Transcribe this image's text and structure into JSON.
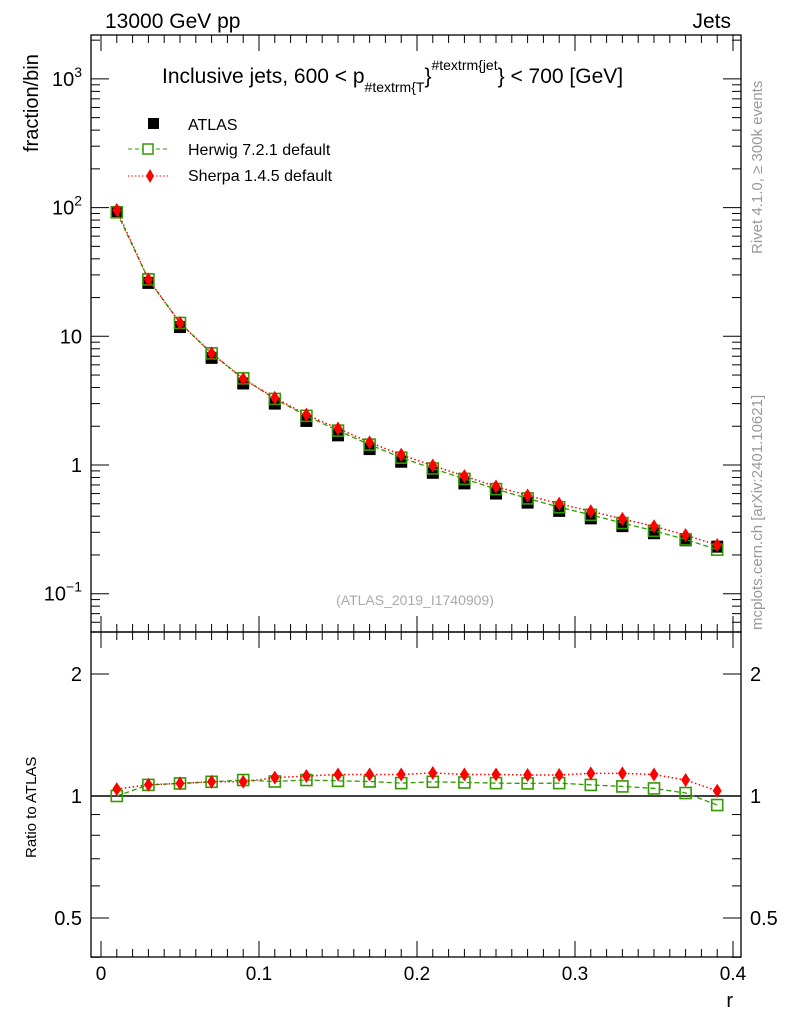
{
  "header": {
    "left": "13000 GeV pp",
    "right": "Jets"
  },
  "side_text": {
    "rivet": "Rivet 4.1.0, ≥ 300k events",
    "mcplots": "mcplots.cern.ch [arXiv:2401.10621]"
  },
  "watermark": "(ATLAS_2019_I1740909)",
  "chart_data": [
    {
      "type": "scatter",
      "title_parts": {
        "main": "Inclusive jets, 600 < p",
        "sub": "#textrm{T",
        "mid": "}",
        "sup": "#textrm{jet",
        "tail": "} < 700 [GeV]"
      },
      "xlabel": "r",
      "ylabel": "fraction/bin",
      "yscale": "log",
      "ylim": [
        0.05,
        2200
      ],
      "xlim": [
        -0.0063,
        0.4051
      ],
      "ytick_labels": [
        {
          "value": 1000,
          "base": "10",
          "exp": "3"
        },
        {
          "value": 100,
          "base": "10",
          "exp": "2"
        },
        {
          "value": 10,
          "base": "10",
          "exp": ""
        },
        {
          "value": 1,
          "base": "1",
          "exp": ""
        },
        {
          "value": 0.1,
          "base": "10",
          "exp": "−1"
        }
      ],
      "x": [
        0.01,
        0.03,
        0.05,
        0.07,
        0.09,
        0.11,
        0.13,
        0.15,
        0.17,
        0.19,
        0.21,
        0.23,
        0.25,
        0.27,
        0.29,
        0.31,
        0.33,
        0.35,
        0.37,
        0.39
      ],
      "legend": {
        "placement": "top-left",
        "entries": [
          "ATLAS",
          "Herwig 7.2.1 default",
          "Sherpa 1.4.5 default"
        ]
      },
      "series": [
        {
          "name": "ATLAS",
          "color": "#000000",
          "marker": "filled-square",
          "values": [
            92,
            26,
            11.8,
            6.8,
            4.3,
            3.0,
            2.2,
            1.7,
            1.33,
            1.06,
            0.87,
            0.72,
            0.6,
            0.51,
            0.44,
            0.385,
            0.335,
            0.295,
            0.26,
            0.232
          ]
        },
        {
          "name": "Herwig 7.2.1 default",
          "color": "#339900",
          "marker": "open-square",
          "line": "dashed",
          "values": [
            92,
            27.7,
            12.7,
            7.37,
            4.71,
            3.26,
            2.41,
            1.85,
            1.44,
            1.14,
            0.94,
            0.78,
            0.65,
            0.55,
            0.47,
            0.41,
            0.354,
            0.308,
            0.264,
            0.22
          ]
        },
        {
          "name": "Sherpa 1.4.5 default",
          "color": "#ff0000",
          "marker": "filled-diamond",
          "line": "dotted",
          "values": [
            95.7,
            27.7,
            12.7,
            7.37,
            4.66,
            3.33,
            2.46,
            1.92,
            1.5,
            1.2,
            0.99,
            0.82,
            0.68,
            0.58,
            0.5,
            0.437,
            0.381,
            0.334,
            0.285,
            0.239
          ]
        }
      ]
    },
    {
      "type": "scatter",
      "ylabel": "Ratio to ATLAS",
      "xlabel": "r",
      "yscale": "log",
      "ylim": [
        0.4,
        2.54
      ],
      "ytick_labels": [
        "2",
        "1",
        "0.5"
      ],
      "ytick_values": [
        2,
        1,
        0.5
      ],
      "xtick_labels": [
        "0",
        "0.1",
        "0.2",
        "0.3",
        "0.4"
      ],
      "xtick_values": [
        0,
        0.1,
        0.2,
        0.3,
        0.4
      ],
      "x": [
        0.01,
        0.03,
        0.05,
        0.07,
        0.09,
        0.11,
        0.13,
        0.15,
        0.17,
        0.19,
        0.21,
        0.23,
        0.25,
        0.27,
        0.29,
        0.31,
        0.33,
        0.35,
        0.37,
        0.39
      ],
      "series": [
        {
          "name": "Herwig 7.2.1 default",
          "color": "#339900",
          "values": [
            1.0,
            1.065,
            1.074,
            1.084,
            1.095,
            1.086,
            1.095,
            1.09,
            1.086,
            1.076,
            1.084,
            1.08,
            1.076,
            1.074,
            1.076,
            1.065,
            1.056,
            1.044,
            1.017,
            0.95
          ]
        },
        {
          "name": "Sherpa 1.4.5 default",
          "color": "#ff0000",
          "values": [
            1.04,
            1.066,
            1.074,
            1.084,
            1.084,
            1.11,
            1.12,
            1.13,
            1.13,
            1.13,
            1.14,
            1.13,
            1.13,
            1.127,
            1.127,
            1.137,
            1.137,
            1.13,
            1.095,
            1.03
          ]
        }
      ]
    }
  ]
}
